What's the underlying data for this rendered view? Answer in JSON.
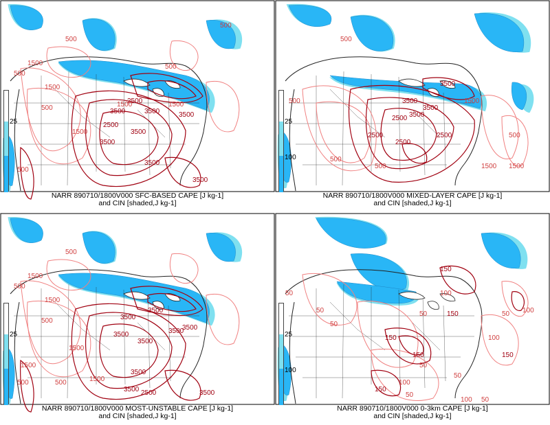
{
  "colors": {
    "cin_shade": "#29b6f6",
    "cin_shade_light": "#7fe0f0",
    "cape_low": "#f08080",
    "cape_high": "#a00010",
    "map_lines": "#222222"
  },
  "panels": [
    {
      "caption_line1": "NARR 890710/1800V000 SFC-BASED CAPE [J kg-1]",
      "caption_line2": "and CIN [shaded,J kg-1]",
      "colorbar_tick_upper": "25",
      "colorbar_tick_lower": "",
      "labels": [
        "500",
        "500",
        "500",
        "500",
        "500",
        "1500",
        "1500",
        "1500",
        "1500",
        "2500",
        "3500",
        "3500",
        "3500",
        "3500",
        "3500",
        "3500",
        "3500",
        "500",
        "1500",
        "2500"
      ]
    },
    {
      "caption_line1": "NARR 890710/1800V000 MIXED-LAYER CAPE [J kg-1]",
      "caption_line2": "and CIN [shaded,J kg-1]",
      "colorbar_tick_upper": "25",
      "colorbar_tick_lower": "100",
      "labels": [
        "500",
        "500",
        "500",
        "1500",
        "2500",
        "3500",
        "3500",
        "3500",
        "2500",
        "2500",
        "2500",
        "1500",
        "1500",
        "500",
        "3500",
        "500"
      ]
    },
    {
      "caption_line1": "NARR 890710/1800V000 MOST-UNSTABLE CAPE [J kg-1]",
      "caption_line2": "and CIN [shaded,J kg-1]",
      "colorbar_tick_upper": "25",
      "colorbar_tick_lower": "",
      "labels": [
        "500",
        "500",
        "500",
        "500",
        "1500",
        "1500",
        "1500",
        "1500",
        "3500",
        "3500",
        "3500",
        "3500",
        "3500",
        "3500",
        "3500",
        "2500",
        "1500",
        "500",
        "3500",
        "3500"
      ]
    },
    {
      "caption_line1": "NARR 890710/1800V000 0-3km CAPE [J kg-1]",
      "caption_line2": "and CIN [shaded,J kg-1]",
      "colorbar_tick_upper": "25",
      "colorbar_tick_lower": "100",
      "labels": [
        "50",
        "50",
        "50",
        "150",
        "100",
        "150",
        "100",
        "50",
        "150",
        "150",
        "50",
        "100",
        "150",
        "50",
        "50",
        "150",
        "100",
        "50",
        "50",
        "100"
      ]
    }
  ]
}
